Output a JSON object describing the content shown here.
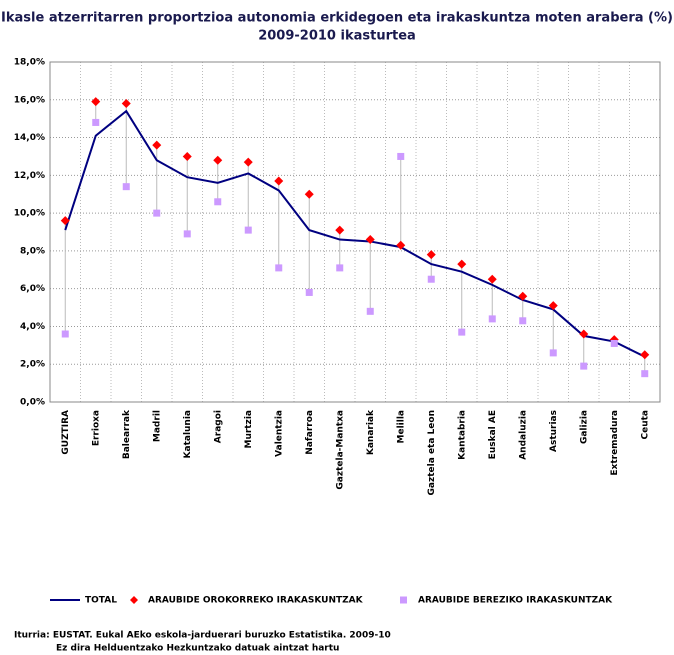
{
  "chart_data": {
    "type": "line",
    "title": "Ikasle atzerritarren proportzioa autonomia erkidegoen eta irakaskuntza moten arabera (%)",
    "subtitle": "2009-2010 ikasturtea",
    "categories": [
      "GUZTIRA",
      "Errioxa",
      "Balearrak",
      "Madril",
      "Katalunia",
      "Aragoi",
      "Murtzia",
      "Valentzia",
      "Nafarroa",
      "Gaztela-Mantxa",
      "Kanariak",
      "Melilla",
      "Gaztela eta Leon",
      "Kantabria",
      "Euskal AE",
      "Andaluzia",
      "Asturias",
      "Galizia",
      "Extremadura",
      "Ceuta"
    ],
    "series": [
      {
        "name": "TOTAL",
        "color": "#000080",
        "marker": "line",
        "values": [
          9.1,
          14.1,
          15.4,
          12.8,
          11.9,
          11.6,
          12.1,
          11.2,
          9.1,
          8.6,
          8.5,
          8.2,
          7.3,
          6.9,
          6.2,
          5.4,
          4.9,
          3.5,
          3.2,
          2.4
        ]
      },
      {
        "name": "ARAUBIDE OROKORREKO IRAKASKUNTZAK",
        "color": "#ff0000",
        "marker": "diamond",
        "values": [
          9.6,
          15.9,
          15.8,
          13.6,
          13.0,
          12.8,
          12.7,
          11.7,
          11.0,
          9.1,
          8.6,
          8.3,
          7.8,
          7.3,
          6.5,
          5.6,
          5.1,
          3.6,
          3.3,
          2.5
        ]
      },
      {
        "name": "ARAUBIDE BEREZIKO IRAKASKUNTZAK",
        "color": "#cc99ff",
        "marker": "square",
        "values": [
          3.6,
          14.8,
          11.4,
          10.0,
          8.9,
          10.6,
          9.1,
          7.1,
          5.8,
          7.1,
          4.8,
          13.0,
          6.5,
          3.7,
          4.4,
          4.3,
          2.6,
          1.9,
          3.1,
          1.5
        ]
      }
    ],
    "ylim": [
      0,
      18
    ],
    "yticks": [
      {
        "value": 0,
        "label": "0,0%"
      },
      {
        "value": 2,
        "label": "2,0%"
      },
      {
        "value": 4,
        "label": "4,0%"
      },
      {
        "value": 6,
        "label": "6,0%"
      },
      {
        "value": 8,
        "label": "8,0%"
      },
      {
        "value": 10,
        "label": "10,0%"
      },
      {
        "value": 12,
        "label": "12,0%"
      },
      {
        "value": 14,
        "label": "14,0%"
      },
      {
        "value": 16,
        "label": "16,0%"
      },
      {
        "value": 18,
        "label": "18,0%"
      }
    ],
    "grid": true,
    "source": [
      "Iturria: EUSTAT. Eukal AEko eskola-jarduerari buruzko Estatistika. 2009-10",
      "Ez dira Helduentzako Hezkuntzako datuak aintzat hartu"
    ]
  }
}
